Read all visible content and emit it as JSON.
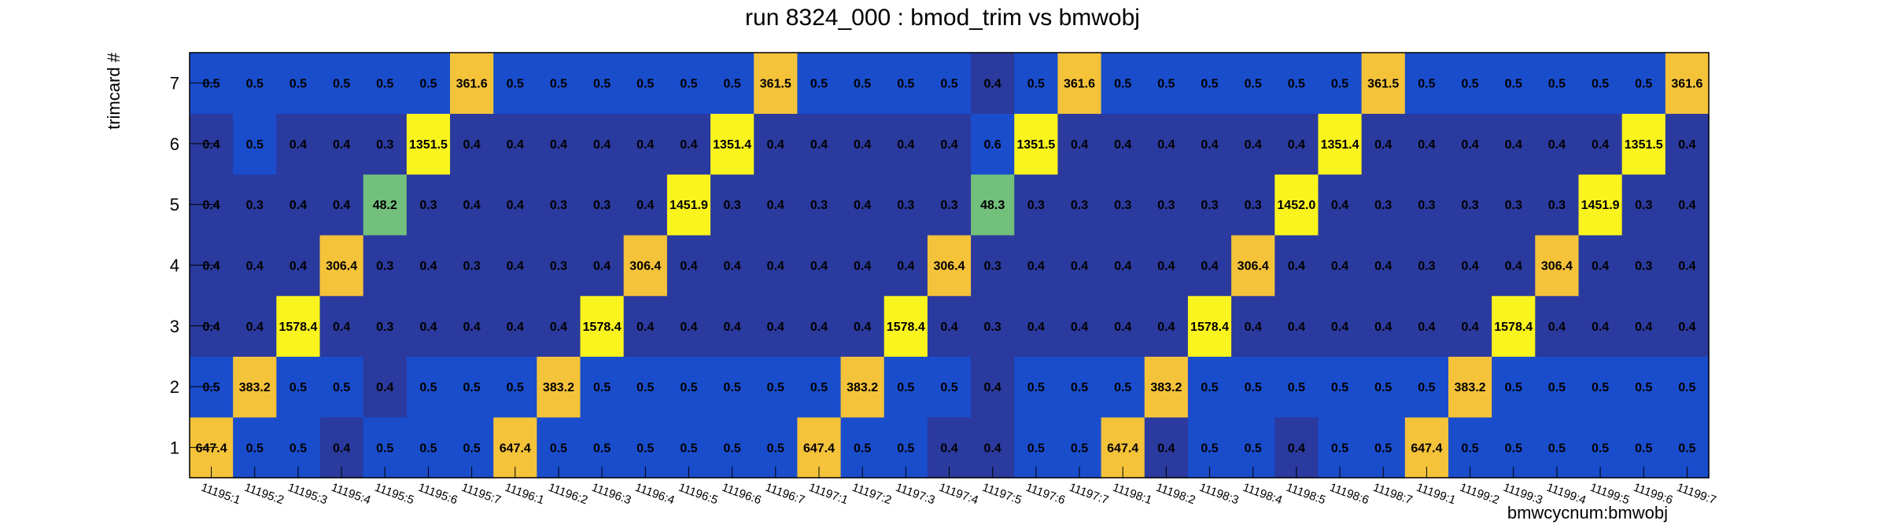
{
  "colors": {
    "dark": "#2B3A9E",
    "mid": "#1A4DCC",
    "green": "#73BF7C",
    "orange": "#F5C33A",
    "yellow": "#FAF41E"
  },
  "chart_data": {
    "type": "heatmap",
    "title": "run 8324_000 : bmod_trim vs bmwobj",
    "xlabel": "bmwcycnum:bmwobj",
    "ylabel": "trimcard #",
    "categories": [
      "11195:1",
      "11195:2",
      "11195:3",
      "11195:4",
      "11195:5",
      "11195:6",
      "11195:7",
      "11196:1",
      "11196:2",
      "11196:3",
      "11196:4",
      "11196:5",
      "11196:6",
      "11196:7",
      "11197:1",
      "11197:2",
      "11197:3",
      "11197:4",
      "11197:5",
      "11197:6",
      "11197:7",
      "11198:1",
      "11198:2",
      "11198:3",
      "11198:4",
      "11198:5",
      "11198:6",
      "11198:7",
      "11199:1",
      "11199:2",
      "11199:3",
      "11199:4",
      "11199:5",
      "11199:6",
      "11199:7"
    ],
    "y_categories": [
      "1",
      "2",
      "3",
      "4",
      "5",
      "6",
      "7"
    ],
    "values": [
      [
        "647.4",
        "0.5",
        "0.5",
        "0.4",
        "0.5",
        "0.5",
        "0.5",
        "647.4",
        "0.5",
        "0.5",
        "0.5",
        "0.5",
        "0.5",
        "0.5",
        "647.4",
        "0.5",
        "0.5",
        "0.4",
        "0.4",
        "0.5",
        "0.5",
        "647.4",
        "0.4",
        "0.5",
        "0.5",
        "0.4",
        "0.5",
        "0.5",
        "647.4",
        "0.5",
        "0.5",
        "0.5",
        "0.5",
        "0.5",
        "0.5"
      ],
      [
        "0.5",
        "383.2",
        "0.5",
        "0.5",
        "0.4",
        "0.5",
        "0.5",
        "0.5",
        "383.2",
        "0.5",
        "0.5",
        "0.5",
        "0.5",
        "0.5",
        "0.5",
        "383.2",
        "0.5",
        "0.5",
        "0.4",
        "0.5",
        "0.5",
        "0.5",
        "383.2",
        "0.5",
        "0.5",
        "0.5",
        "0.5",
        "0.5",
        "0.5",
        "383.2",
        "0.5",
        "0.5",
        "0.5",
        "0.5",
        "0.5"
      ],
      [
        "0.4",
        "0.4",
        "1578.4",
        "0.4",
        "0.3",
        "0.4",
        "0.4",
        "0.4",
        "0.4",
        "1578.4",
        "0.4",
        "0.4",
        "0.4",
        "0.4",
        "0.4",
        "0.4",
        "1578.4",
        "0.4",
        "0.3",
        "0.4",
        "0.4",
        "0.4",
        "0.4",
        "1578.4",
        "0.4",
        "0.4",
        "0.4",
        "0.4",
        "0.4",
        "0.4",
        "1578.4",
        "0.4",
        "0.4",
        "0.4",
        "0.4"
      ],
      [
        "0.4",
        "0.4",
        "0.4",
        "306.4",
        "0.3",
        "0.4",
        "0.3",
        "0.4",
        "0.3",
        "0.4",
        "306.4",
        "0.4",
        "0.4",
        "0.4",
        "0.4",
        "0.4",
        "0.4",
        "306.4",
        "0.3",
        "0.4",
        "0.4",
        "0.4",
        "0.4",
        "0.4",
        "306.4",
        "0.4",
        "0.4",
        "0.4",
        "0.3",
        "0.4",
        "0.4",
        "306.4",
        "0.4",
        "0.3",
        "0.4"
      ],
      [
        "0.4",
        "0.3",
        "0.4",
        "0.4",
        "48.2",
        "0.3",
        "0.4",
        "0.4",
        "0.3",
        "0.3",
        "0.4",
        "1451.9",
        "0.3",
        "0.4",
        "0.3",
        "0.4",
        "0.3",
        "0.3",
        "48.3",
        "0.3",
        "0.3",
        "0.3",
        "0.3",
        "0.3",
        "0.3",
        "1452.0",
        "0.4",
        "0.3",
        "0.3",
        "0.3",
        "0.3",
        "0.3",
        "1451.9",
        "0.3",
        "0.4"
      ],
      [
        "0.4",
        "0.5",
        "0.4",
        "0.4",
        "0.3",
        "1351.5",
        "0.4",
        "0.4",
        "0.4",
        "0.4",
        "0.4",
        "0.4",
        "1351.4",
        "0.4",
        "0.4",
        "0.4",
        "0.4",
        "0.4",
        "0.6",
        "1351.5",
        "0.4",
        "0.4",
        "0.4",
        "0.4",
        "0.4",
        "0.4",
        "1351.4",
        "0.4",
        "0.4",
        "0.4",
        "0.4",
        "0.4",
        "0.4",
        "1351.5",
        "0.4"
      ],
      [
        "0.5",
        "0.5",
        "0.5",
        "0.5",
        "0.5",
        "0.5",
        "361.6",
        "0.5",
        "0.5",
        "0.5",
        "0.5",
        "0.5",
        "0.5",
        "361.5",
        "0.5",
        "0.5",
        "0.5",
        "0.5",
        "0.4",
        "0.5",
        "361.6",
        "0.5",
        "0.5",
        "0.5",
        "0.5",
        "0.5",
        "0.5",
        "361.5",
        "0.5",
        "0.5",
        "0.5",
        "0.5",
        "0.5",
        "0.5",
        "361.6"
      ]
    ],
    "grid": false,
    "legend": "none"
  }
}
